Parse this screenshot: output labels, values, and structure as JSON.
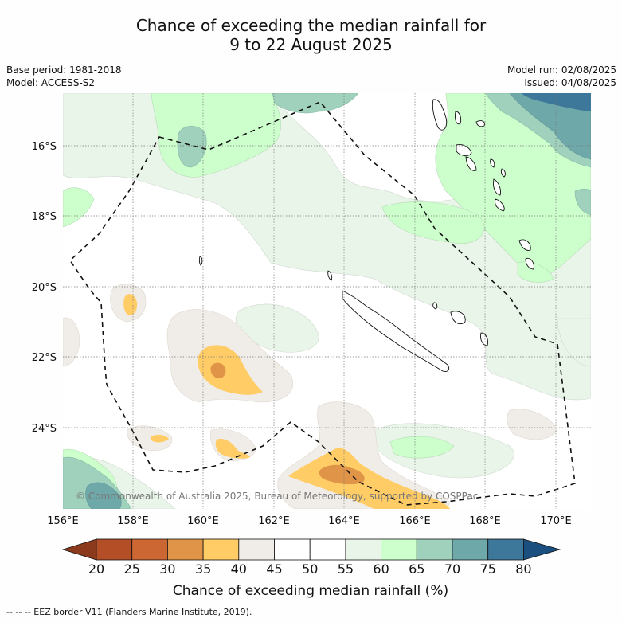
{
  "title": {
    "line1": "Chance of exceeding the median rainfall for",
    "line2": "9 to 22 August 2025"
  },
  "meta": {
    "base_period": "Base period: 1981-2018",
    "model": "Model: ACCESS-S2",
    "model_run": "Model run: 02/08/2025",
    "issued": "Issued: 04/08/2025"
  },
  "map": {
    "lat_labels": [
      "16°S",
      "18°S",
      "20°S",
      "22°S",
      "24°S"
    ],
    "lon_labels": [
      "156°E",
      "158°E",
      "160°E",
      "162°E",
      "164°E",
      "166°E",
      "168°E",
      "170°E"
    ],
    "copyright": "© Commonwealth of Australia 2025, Bureau of Meteorology, supported by COSPPac"
  },
  "colorbar": {
    "ticks": [
      "20",
      "25",
      "30",
      "35",
      "40",
      "45",
      "50",
      "55",
      "60",
      "65",
      "70",
      "75",
      "80"
    ],
    "colors": {
      "below20": "#8c3a1e",
      "20-25": "#b34e26",
      "25-30": "#cc6633",
      "30-35": "#e09448",
      "35-40": "#ffcc66",
      "40-45": "#f0ede8",
      "45-50": "#ffffff",
      "50-55": "#ffffff",
      "55-60": "#eaf5ea",
      "60-65": "#ccffcc",
      "65-70": "#9fd1bc",
      "70-75": "#6fa8a8",
      "75-80": "#3d7799",
      "above80": "#1a4f80"
    },
    "label": "Chance of exceeding median rainfall (%)"
  },
  "footnote": "--  --  -- EEZ border V11 (Flanders Marine Institute, 2019)."
}
